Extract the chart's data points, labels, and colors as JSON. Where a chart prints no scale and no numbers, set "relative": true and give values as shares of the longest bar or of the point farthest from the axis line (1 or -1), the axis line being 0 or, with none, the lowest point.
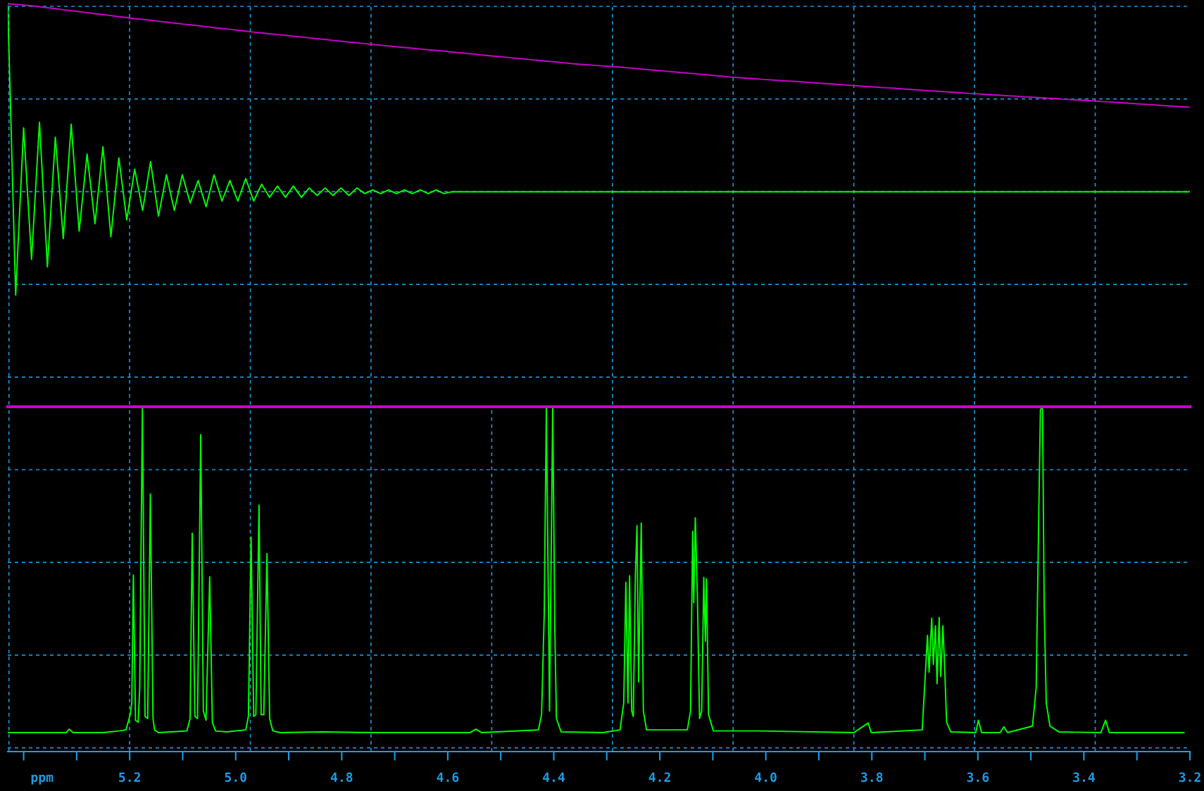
{
  "chart_data": [
    {
      "type": "line",
      "relative": true,
      "grid": true,
      "categories": [
        null,
        null,
        null,
        null,
        null,
        null,
        null,
        null,
        null,
        null,
        null,
        null,
        null,
        null,
        null,
        null,
        null,
        null,
        null,
        null,
        null,
        null,
        null,
        null,
        null,
        null,
        null,
        null,
        null,
        null,
        null,
        null,
        null,
        null,
        null,
        null,
        null,
        null,
        null,
        null,
        null,
        null,
        null,
        null,
        null,
        null,
        null,
        null,
        null,
        null,
        null,
        null,
        null,
        null,
        null,
        null,
        null,
        null,
        null,
        null,
        null,
        null,
        null,
        null,
        null,
        null,
        null,
        null,
        null,
        null,
        null,
        null,
        null,
        null,
        null,
        null,
        null,
        null,
        null,
        null,
        null,
        null,
        null,
        null,
        null,
        null,
        null,
        null,
        null,
        null,
        null,
        null,
        null,
        null,
        null,
        null,
        null,
        null,
        null,
        null,
        null,
        null,
        null,
        null,
        null,
        null,
        null,
        null,
        null,
        null,
        null,
        null,
        null,
        null,
        null,
        null,
        null,
        null,
        null,
        null,
        null,
        null,
        null,
        null,
        null,
        null,
        null,
        null,
        null,
        null,
        null,
        null,
        null,
        null,
        null,
        null,
        null,
        null,
        null,
        null,
        null,
        null,
        null,
        null,
        null,
        null,
        null,
        null,
        null,
        null
      ],
      "series": [
        {
          "color": "#00ff00",
          "values": [
            0.99,
            -0.55,
            0.34,
            -0.36,
            0.37,
            -0.4,
            0.29,
            -0.25,
            0.36,
            -0.21,
            0.2,
            -0.17,
            0.24,
            -0.24,
            0.18,
            -0.15,
            0.12,
            -0.1,
            0.16,
            -0.13,
            0.09,
            -0.1,
            0.09,
            -0.06,
            0.06,
            -0.08,
            0.09,
            -0.05,
            0.06,
            -0.05,
            0.07,
            -0.05,
            0.04,
            -0.03,
            0.03,
            -0.03,
            0.03,
            -0.03,
            0.02,
            -0.02,
            0.02,
            -0.02,
            0.02,
            -0.02,
            0.02,
            -0.01,
            0.01,
            -0.01,
            0.01,
            -0.01,
            0.01,
            -0.01,
            0.01,
            -0.01,
            0.01,
            -0.01,
            0,
            0,
            0,
            0,
            0,
            0,
            0,
            0,
            0,
            0,
            0,
            0,
            0,
            0,
            0,
            0,
            0,
            0,
            0,
            0,
            0,
            0,
            0,
            0,
            0,
            0,
            0,
            0,
            0,
            0,
            0,
            0,
            0,
            0,
            0,
            0,
            0,
            0,
            0,
            0,
            0,
            0,
            0,
            0,
            0,
            0,
            0,
            0,
            0,
            0,
            0,
            0,
            0,
            0,
            0,
            0,
            0,
            0,
            0,
            0,
            0,
            0,
            0,
            0,
            0,
            0,
            0,
            0,
            0,
            0,
            0,
            0,
            0,
            0,
            0,
            0,
            0,
            0,
            0,
            0,
            0,
            0,
            0,
            0,
            0,
            0,
            0,
            0,
            0,
            0,
            0,
            0,
            0,
            0
          ]
        },
        {
          "color": "#cc00cc",
          "values": [
            1.0,
            0.998,
            0.994,
            0.99,
            0.985,
            0.98,
            0.975,
            0.969,
            0.964,
            0.959,
            0.954,
            0.948,
            0.943,
            0.938,
            0.932,
            0.927,
            0.922,
            0.918,
            0.913,
            0.908,
            0.903,
            0.898,
            0.893,
            0.889,
            0.884,
            0.879,
            0.874,
            0.869,
            0.865,
            0.86,
            0.855,
            0.85,
            0.846,
            0.841,
            0.837,
            0.833,
            0.828,
            0.824,
            0.819,
            0.815,
            0.811,
            0.806,
            0.802,
            0.797,
            0.793,
            0.789,
            0.784,
            0.78,
            0.776,
            0.772,
            0.768,
            0.764,
            0.76,
            0.756,
            0.752,
            0.748,
            0.744,
            0.74,
            0.736,
            0.732,
            0.727,
            0.723,
            0.719,
            0.715,
            0.711,
            0.707,
            0.703,
            0.699,
            0.695,
            0.691,
            0.687,
            0.683,
            0.679,
            0.676,
            0.673,
            0.67,
            0.667,
            0.664,
            0.66,
            0.657,
            0.653,
            0.649,
            0.645,
            0.642,
            0.638,
            0.634,
            0.63,
            0.627,
            0.623,
            0.619,
            0.615,
            0.611,
            0.608,
            0.605,
            0.602,
            0.599,
            0.596,
            0.593,
            0.59,
            0.588,
            0.585,
            0.582,
            0.579,
            0.576,
            0.573,
            0.57,
            0.567,
            0.564,
            0.561,
            0.558,
            0.555,
            0.553,
            0.55,
            0.547,
            0.544,
            0.541,
            0.538,
            0.536,
            0.533,
            0.53,
            0.527,
            0.524,
            0.522,
            0.519,
            0.516,
            0.514,
            0.511,
            0.509,
            0.506,
            0.504,
            0.501,
            0.498,
            0.496,
            0.493,
            0.491,
            0.488,
            0.486,
            0.483,
            0.48,
            0.478,
            0.475,
            0.472,
            0.469,
            0.466,
            0.464,
            0.461,
            0.458,
            0.455,
            0.452,
            0.45
          ]
        }
      ]
    },
    {
      "type": "line",
      "relative": true,
      "grid": true,
      "xlabel": "ppm",
      "xlim": [
        5.43,
        3.2
      ],
      "xticks": [
        {
          "value": 5.4,
          "label": null
        },
        {
          "value": 5.3,
          "label": null
        },
        5.2,
        {
          "value": 5.1,
          "label": null
        },
        {
          "value": 5.0,
          "label": "5.0"
        },
        {
          "value": 4.9,
          "label": null
        },
        4.8,
        {
          "value": 4.7,
          "label": null
        },
        4.6,
        {
          "value": 4.5,
          "label": null
        },
        4.4,
        {
          "value": 4.3,
          "label": null
        },
        4.2,
        {
          "value": 4.1,
          "label": null
        },
        {
          "value": 4.0,
          "label": "4.0"
        },
        {
          "value": 3.9,
          "label": null
        },
        3.8,
        {
          "value": 3.7,
          "label": null
        },
        3.6,
        {
          "value": 3.5,
          "label": null
        },
        3.4,
        {
          "value": 3.3,
          "label": null
        },
        3.2
      ],
      "x": [
        5.43,
        5.32,
        5.314,
        5.307,
        5.25,
        5.22,
        5.207,
        5.199,
        5.196,
        5.193,
        5.189,
        5.184,
        5.181,
        5.176,
        5.171,
        5.166,
        5.161,
        5.156,
        5.153,
        5.146,
        5.092,
        5.086,
        5.082,
        5.077,
        5.072,
        5.066,
        5.061,
        5.056,
        5.049,
        5.044,
        5.038,
        5.017,
        4.981,
        4.976,
        4.971,
        4.966,
        4.962,
        4.956,
        4.952,
        4.947,
        4.941,
        4.936,
        4.93,
        4.916,
        4.837,
        4.73,
        4.558,
        4.547,
        4.536,
        4.429,
        4.423,
        4.418,
        4.414,
        4.408,
        4.402,
        4.398,
        4.395,
        4.386,
        4.307,
        4.275,
        4.268,
        4.264,
        4.26,
        4.257,
        4.253,
        4.25,
        4.246,
        4.243,
        4.24,
        4.235,
        4.231,
        4.225,
        4.148,
        4.142,
        4.138,
        4.136,
        4.133,
        4.129,
        4.125,
        4.121,
        4.117,
        4.114,
        4.112,
        4.108,
        4.099,
        4.013,
        3.834,
        3.807,
        3.801,
        3.705,
        3.695,
        3.692,
        3.687,
        3.684,
        3.68,
        3.677,
        3.673,
        3.67,
        3.666,
        3.662,
        3.659,
        3.651,
        3.604,
        3.599,
        3.593,
        3.558,
        3.551,
        3.544,
        3.497,
        3.49,
        3.485,
        3.482,
        3.478,
        3.475,
        3.471,
        3.464,
        3.447,
        3.368,
        3.359,
        3.352,
        3.211
      ],
      "series": [
        {
          "color": "#00ff00",
          "values": [
            0.055,
            0.055,
            0.065,
            0.055,
            0.055,
            0.06,
            0.063,
            0.107,
            0.141,
            0.512,
            0.091,
            0.085,
            0.186,
            1.0,
            0.102,
            0.096,
            0.747,
            0.096,
            0.063,
            0.055,
            0.06,
            0.096,
            0.633,
            0.102,
            0.096,
            0.919,
            0.118,
            0.091,
            0.507,
            0.085,
            0.06,
            0.057,
            0.063,
            0.102,
            0.622,
            0.102,
            0.107,
            0.715,
            0.107,
            0.107,
            0.574,
            0.096,
            0.06,
            0.055,
            0.057,
            0.055,
            0.055,
            0.065,
            0.055,
            0.063,
            0.107,
            0.398,
            1.0,
            0.118,
            1.0,
            0.354,
            0.096,
            0.057,
            0.055,
            0.063,
            0.141,
            0.491,
            0.141,
            0.51,
            0.118,
            0.102,
            0.515,
            0.655,
            0.202,
            0.663,
            0.118,
            0.063,
            0.063,
            0.118,
            0.639,
            0.432,
            0.678,
            0.443,
            0.096,
            0.118,
            0.505,
            0.32,
            0.501,
            0.107,
            0.06,
            0.06,
            0.055,
            0.083,
            0.055,
            0.063,
            0.337,
            0.23,
            0.387,
            0.253,
            0.365,
            0.197,
            0.389,
            0.218,
            0.365,
            0.218,
            0.085,
            0.057,
            0.055,
            0.091,
            0.055,
            0.055,
            0.072,
            0.055,
            0.074,
            0.186,
            0.7,
            0.991,
            1.0,
            0.432,
            0.141,
            0.074,
            0.057,
            0.055,
            0.091,
            0.055,
            0.055
          ]
        }
      ]
    }
  ]
}
